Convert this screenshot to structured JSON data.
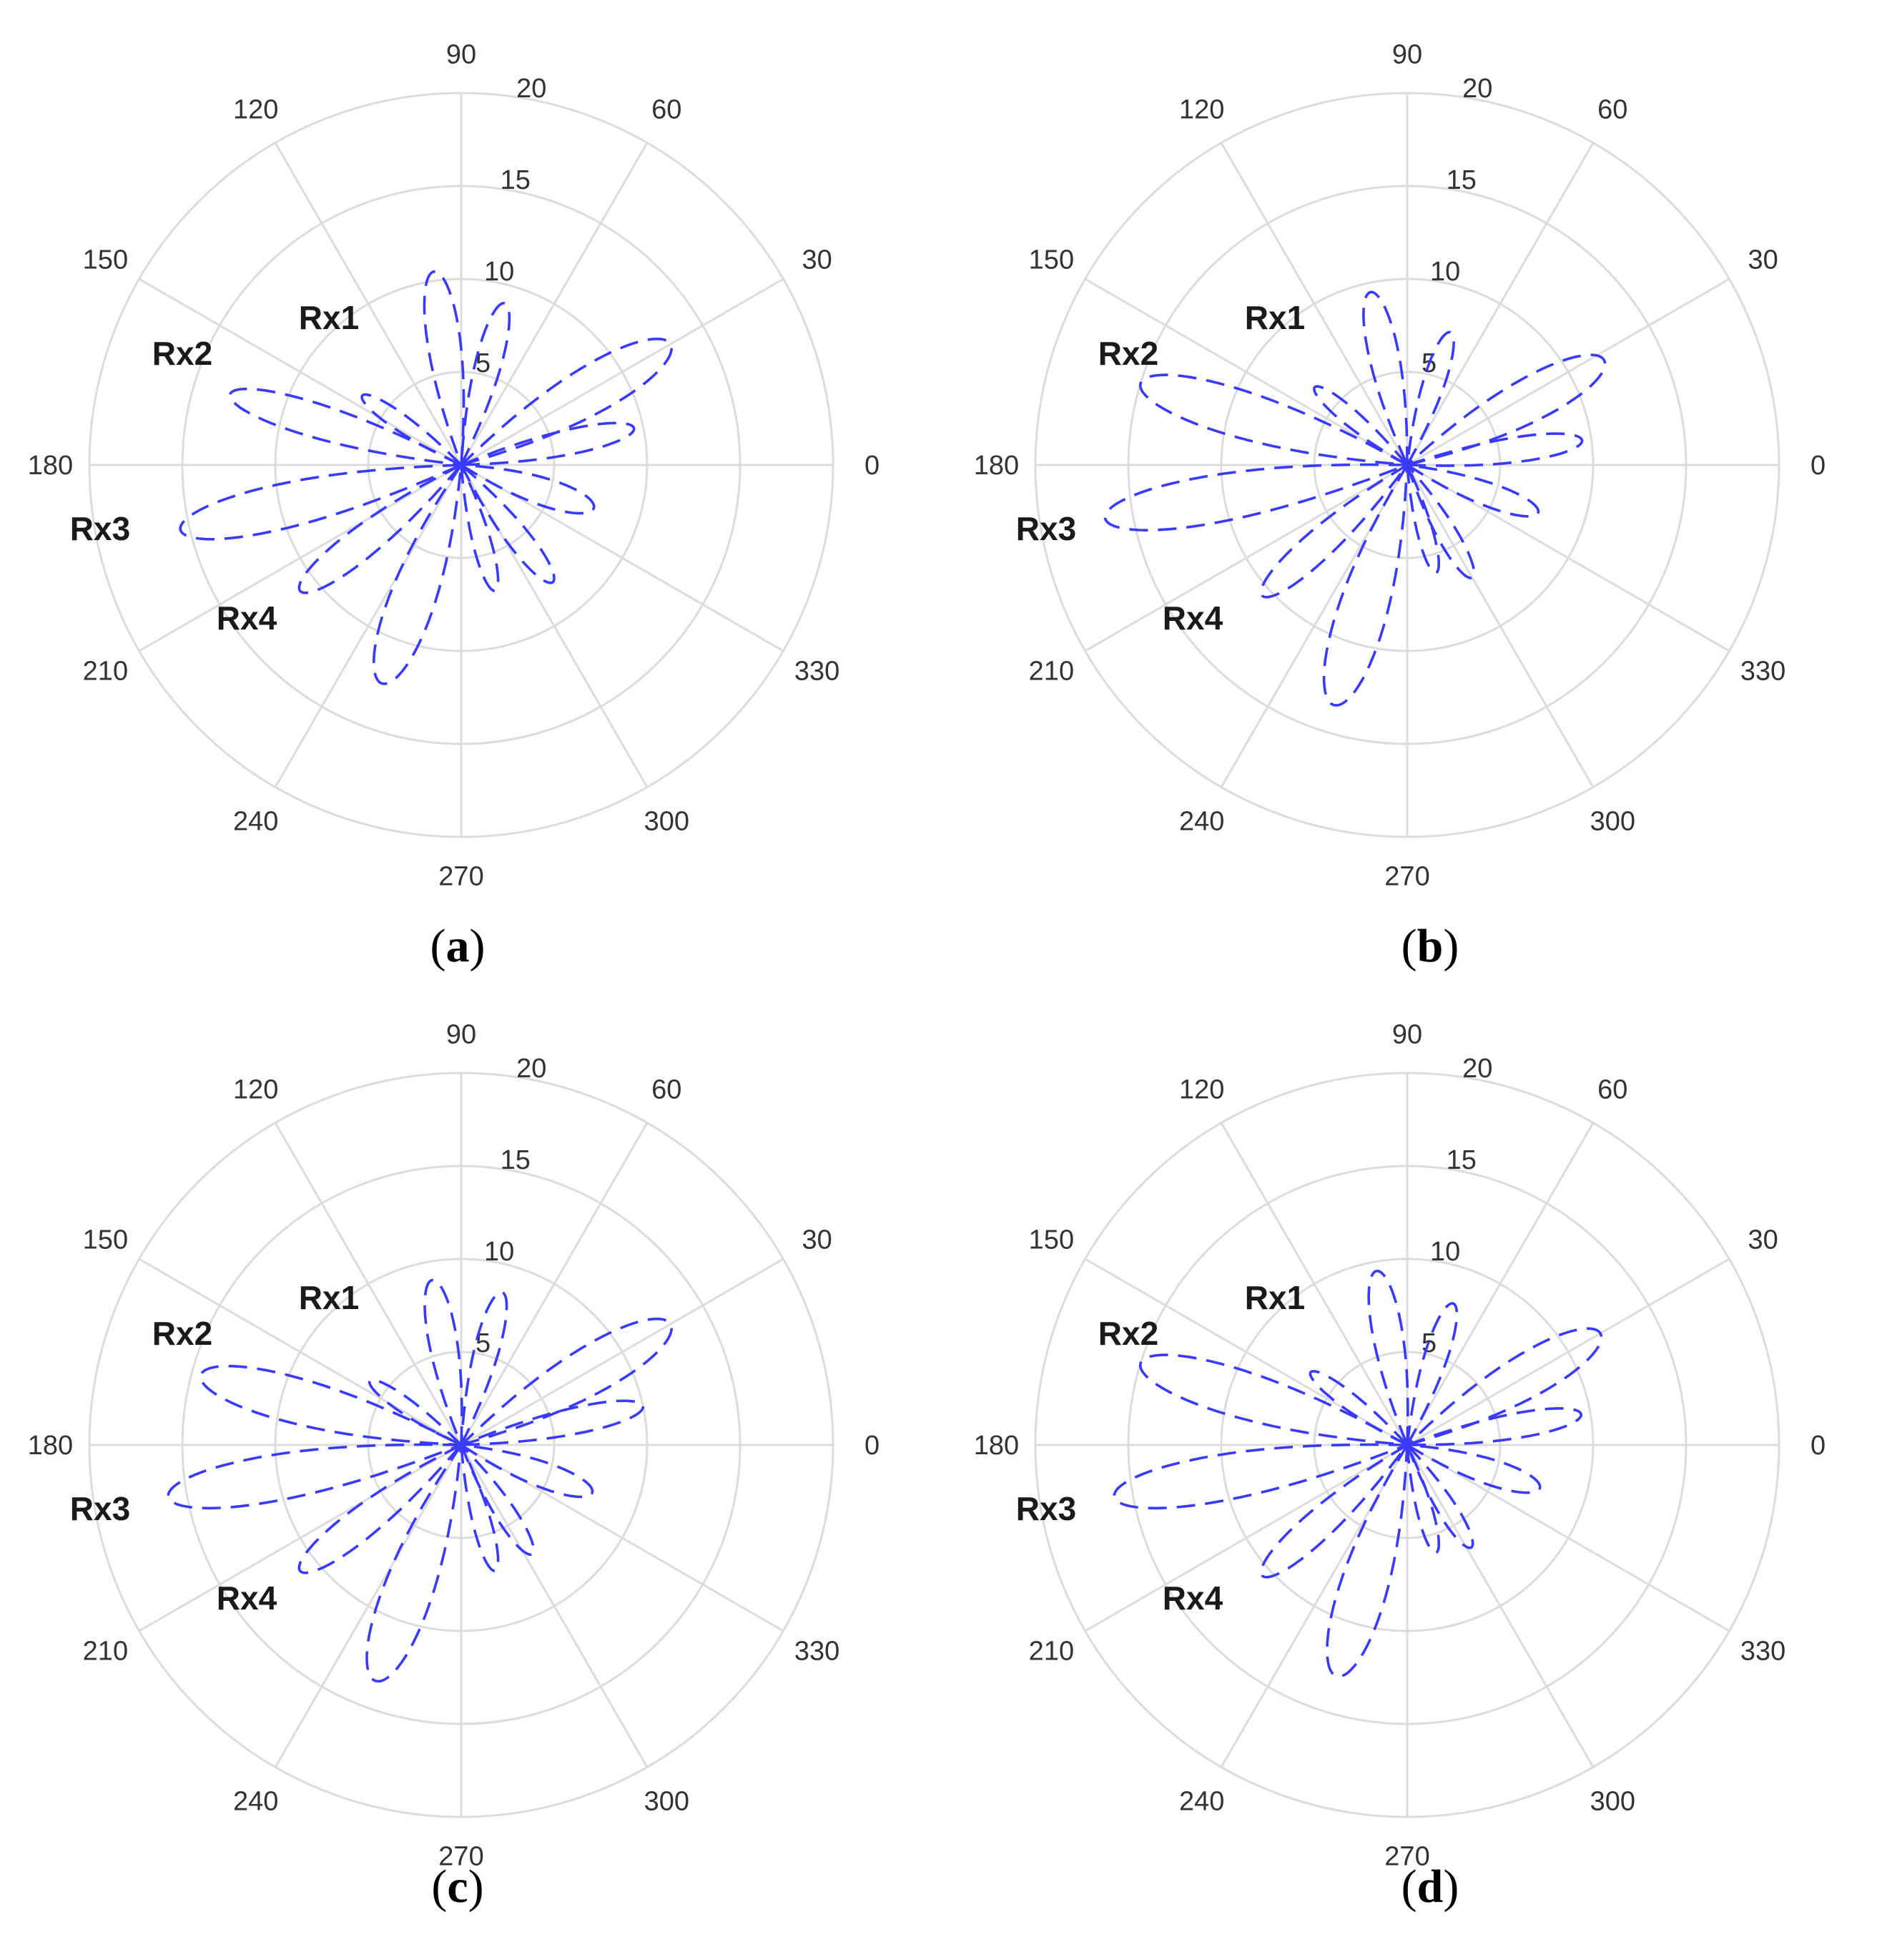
{
  "chart_data": [
    {
      "type": "polar",
      "panel": "a",
      "angle_ticks": [
        "0",
        "30",
        "60",
        "90",
        "120",
        "150",
        "180",
        "210",
        "240",
        "270",
        "300",
        "330"
      ],
      "radial_ticks": [
        "5",
        "10",
        "15",
        "20"
      ],
      "rlim": [
        0,
        20
      ],
      "series_color": "#3a3aff",
      "line_style": "dashed",
      "labels": [
        "Rx1",
        "Rx2",
        "Rx3",
        "Rx4"
      ],
      "lobes": [
        {
          "angle": 98,
          "r": 10.5,
          "width": 12
        },
        {
          "angle": 75,
          "r": 9.0,
          "width": 11
        },
        {
          "angle": 30,
          "r": 13.0,
          "width": 14
        },
        {
          "angle": 12,
          "r": 9.5,
          "width": 10
        },
        {
          "angle": 342,
          "r": 7.5,
          "width": 14
        },
        {
          "angle": 308,
          "r": 8.0,
          "width": 11
        },
        {
          "angle": 285,
          "r": 7.0,
          "width": 10
        },
        {
          "angle": 250,
          "r": 12.5,
          "width": 14
        },
        {
          "angle": 218,
          "r": 11.0,
          "width": 11
        },
        {
          "angle": 193,
          "r": 15.5,
          "width": 11
        },
        {
          "angle": 163,
          "r": 13.0,
          "width": 10
        },
        {
          "angle": 145,
          "r": 6.5,
          "width": 10
        }
      ],
      "caption": "a"
    },
    {
      "type": "polar",
      "panel": "b",
      "angle_ticks": [
        "0",
        "30",
        "60",
        "90",
        "120",
        "150",
        "180",
        "210",
        "240",
        "270",
        "300",
        "330"
      ],
      "radial_ticks": [
        "5",
        "10",
        "15",
        "20"
      ],
      "rlim": [
        0,
        20
      ],
      "series_color": "#3a3aff",
      "line_style": "dashed",
      "labels": [
        "Rx1",
        "Rx2",
        "Rx3",
        "Rx4"
      ],
      "lobes": [
        {
          "angle": 102,
          "r": 9.5,
          "width": 12
        },
        {
          "angle": 72,
          "r": 7.5,
          "width": 11
        },
        {
          "angle": 28,
          "r": 12.0,
          "width": 14
        },
        {
          "angle": 8,
          "r": 9.5,
          "width": 10
        },
        {
          "angle": 340,
          "r": 7.5,
          "width": 12
        },
        {
          "angle": 300,
          "r": 7.0,
          "width": 11
        },
        {
          "angle": 285,
          "r": 6.0,
          "width": 10
        },
        {
          "angle": 253,
          "r": 13.5,
          "width": 14
        },
        {
          "angle": 222,
          "r": 10.5,
          "width": 11
        },
        {
          "angle": 190,
          "r": 16.5,
          "width": 11
        },
        {
          "angle": 163,
          "r": 15.0,
          "width": 12
        },
        {
          "angle": 140,
          "r": 6.5,
          "width": 10
        }
      ],
      "caption": "b"
    },
    {
      "type": "polar",
      "panel": "c",
      "angle_ticks": [
        "0",
        "30",
        "60",
        "90",
        "120",
        "150",
        "180",
        "210",
        "240",
        "270",
        "300",
        "330"
      ],
      "radial_ticks": [
        "5",
        "10",
        "15",
        "20"
      ],
      "rlim": [
        0,
        20
      ],
      "series_color": "#3a3aff",
      "line_style": "dashed",
      "labels": [
        "Rx1",
        "Rx2",
        "Rx3",
        "Rx4"
      ],
      "lobes": [
        {
          "angle": 100,
          "r": 9.0,
          "width": 12
        },
        {
          "angle": 75,
          "r": 8.5,
          "width": 11
        },
        {
          "angle": 30,
          "r": 13.0,
          "width": 14
        },
        {
          "angle": 12,
          "r": 10.0,
          "width": 10
        },
        {
          "angle": 340,
          "r": 7.5,
          "width": 13
        },
        {
          "angle": 303,
          "r": 7.0,
          "width": 11
        },
        {
          "angle": 285,
          "r": 7.0,
          "width": 10
        },
        {
          "angle": 250,
          "r": 13.5,
          "width": 14
        },
        {
          "angle": 218,
          "r": 11.0,
          "width": 11
        },
        {
          "angle": 190,
          "r": 16.0,
          "width": 11
        },
        {
          "angle": 165,
          "r": 14.5,
          "width": 12
        },
        {
          "angle": 145,
          "r": 6.0,
          "width": 10
        }
      ],
      "caption": "c"
    },
    {
      "type": "polar",
      "panel": "d",
      "angle_ticks": [
        "0",
        "30",
        "60",
        "90",
        "120",
        "150",
        "180",
        "210",
        "240",
        "270",
        "300",
        "330"
      ],
      "radial_ticks": [
        "5",
        "10",
        "15",
        "20"
      ],
      "rlim": [
        0,
        20
      ],
      "series_color": "#3a3aff",
      "line_style": "dashed",
      "labels": [
        "Rx1",
        "Rx2",
        "Rx3",
        "Rx4"
      ],
      "lobes": [
        {
          "angle": 100,
          "r": 9.5,
          "width": 12
        },
        {
          "angle": 72,
          "r": 8.0,
          "width": 11
        },
        {
          "angle": 30,
          "r": 12.0,
          "width": 14
        },
        {
          "angle": 10,
          "r": 9.5,
          "width": 10
        },
        {
          "angle": 342,
          "r": 7.5,
          "width": 13
        },
        {
          "angle": 302,
          "r": 6.5,
          "width": 11
        },
        {
          "angle": 285,
          "r": 6.0,
          "width": 10
        },
        {
          "angle": 253,
          "r": 13.0,
          "width": 14
        },
        {
          "angle": 222,
          "r": 10.5,
          "width": 11
        },
        {
          "angle": 190,
          "r": 16.0,
          "width": 11
        },
        {
          "angle": 163,
          "r": 15.0,
          "width": 12
        },
        {
          "angle": 143,
          "r": 6.5,
          "width": 10
        }
      ],
      "caption": "d"
    }
  ]
}
